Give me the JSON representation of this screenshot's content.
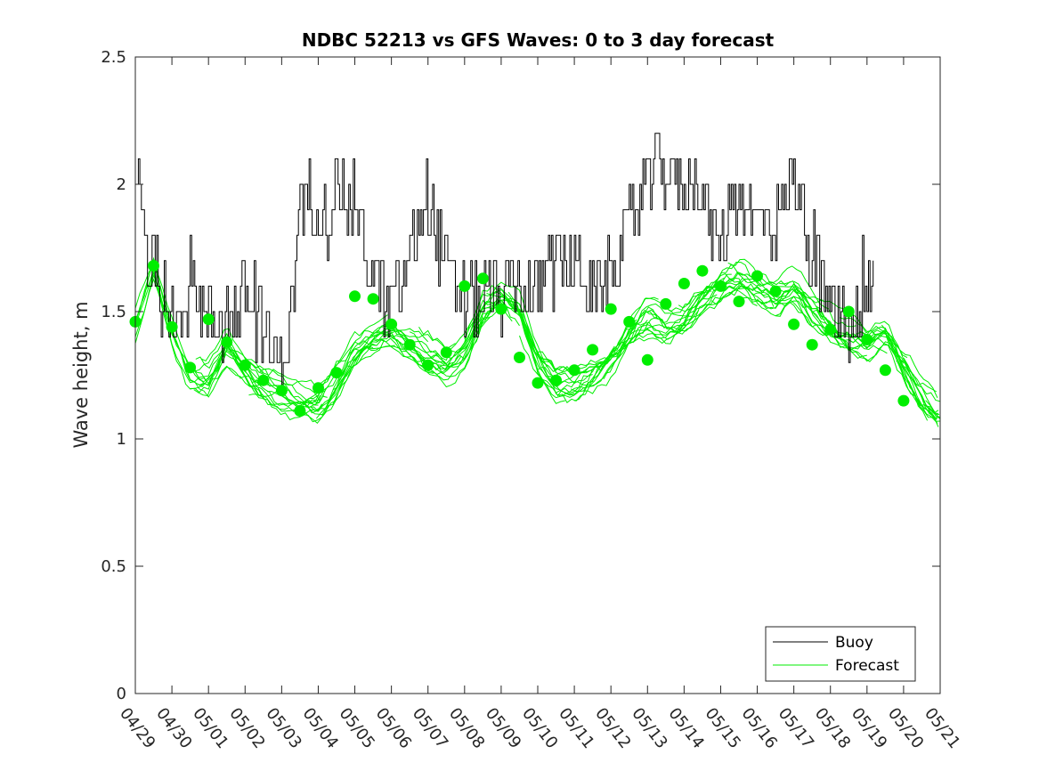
{
  "chart_data": {
    "type": "line",
    "title": "NDBC 52213 vs GFS Waves: 0 to 3 day forecast",
    "xlabel": "",
    "ylabel": "Wave height, m",
    "ylim": [
      0,
      2.5
    ],
    "yticks": [
      "0",
      "0.5",
      "1",
      "1.5",
      "2",
      "2.5"
    ],
    "x_range_days": [
      "04/29",
      "05/21"
    ],
    "xtick_labels": [
      "04/29",
      "04/30",
      "05/01",
      "05/02",
      "05/03",
      "05/04",
      "05/05",
      "05/06",
      "05/07",
      "05/08",
      "05/09",
      "05/10",
      "05/11",
      "05/12",
      "05/13",
      "05/14",
      "05/15",
      "05/16",
      "05/17",
      "05/18",
      "05/19",
      "05/20",
      "05/21"
    ],
    "grid": false,
    "legend_position": "bottom-right",
    "legend": [
      "Buoy",
      "Forecast"
    ],
    "colors": {
      "buoy": "#000000",
      "forecast": "#00ee00"
    },
    "buoy_anchor_days": [
      0,
      0.08,
      0.2,
      0.3,
      0.35,
      0.5,
      0.6,
      0.8,
      0.9,
      1.0,
      1.15,
      1.3,
      1.5,
      1.7,
      1.8,
      2.0,
      2.3,
      2.6,
      2.8,
      3.0,
      3.3,
      3.6,
      3.8,
      4.0,
      4.2,
      4.5,
      4.8,
      5.2,
      5.5,
      5.8,
      6.0,
      6.2,
      6.5,
      6.7,
      6.9,
      7.0,
      7.2,
      7.4,
      7.6,
      7.8,
      8.0,
      8.3,
      8.6,
      9.0,
      9.3,
      9.6,
      9.9,
      10.2,
      10.5,
      10.8,
      11.0,
      11.3,
      11.6,
      11.9,
      12.2,
      12.5,
      12.8,
      13.0,
      13.2,
      13.5,
      13.8,
      14.0,
      14.3,
      14.6,
      14.9,
      15.2,
      15.5,
      15.8,
      16.0,
      16.3,
      16.6,
      16.9,
      17.2,
      17.5,
      17.8,
      18.0,
      18.2,
      18.5,
      18.8,
      19.0,
      19.3,
      19.6,
      19.9,
      20.2
    ],
    "buoy_anchor_values": [
      1.9,
      2.05,
      1.95,
      1.7,
      1.65,
      1.75,
      1.65,
      1.5,
      1.55,
      1.6,
      1.45,
      1.45,
      1.6,
      1.6,
      1.5,
      1.45,
      1.45,
      1.5,
      1.5,
      1.6,
      1.45,
      1.4,
      1.3,
      1.3,
      1.4,
      1.9,
      1.95,
      1.85,
      2.0,
      1.9,
      1.95,
      1.75,
      1.65,
      1.6,
      1.45,
      1.55,
      1.55,
      1.7,
      1.75,
      1.9,
      1.95,
      1.75,
      1.65,
      1.55,
      1.55,
      1.55,
      1.55,
      1.6,
      1.6,
      1.55,
      1.6,
      1.65,
      1.7,
      1.7,
      1.7,
      1.55,
      1.6,
      1.65,
      1.7,
      1.85,
      1.95,
      2.0,
      2.1,
      2.05,
      1.95,
      2.05,
      1.95,
      1.8,
      1.75,
      1.95,
      1.95,
      1.85,
      1.85,
      1.85,
      1.95,
      2.05,
      1.95,
      1.7,
      1.6,
      1.5,
      1.45,
      1.45,
      1.5,
      1.6
    ],
    "forecast_anchor_days": [
      0,
      0.5,
      1,
      1.5,
      2,
      2.5,
      3,
      3.5,
      4,
      4.5,
      5,
      5.5,
      6,
      6.5,
      7,
      7.5,
      8,
      8.5,
      9,
      9.5,
      10,
      10.5,
      11,
      11.5,
      12,
      12.5,
      13,
      13.5,
      14,
      14.5,
      15,
      15.5,
      16,
      16.5,
      17,
      17.5,
      18,
      18.5,
      19,
      19.5,
      20,
      20.5,
      21,
      21.5,
      22
    ],
    "forecast_anchor_values": [
      1.46,
      1.68,
      1.43,
      1.27,
      1.25,
      1.36,
      1.27,
      1.22,
      1.18,
      1.15,
      1.14,
      1.23,
      1.33,
      1.38,
      1.42,
      1.38,
      1.33,
      1.28,
      1.33,
      1.5,
      1.55,
      1.49,
      1.3,
      1.2,
      1.2,
      1.25,
      1.32,
      1.42,
      1.49,
      1.45,
      1.47,
      1.57,
      1.62,
      1.64,
      1.6,
      1.56,
      1.6,
      1.52,
      1.47,
      1.42,
      1.38,
      1.42,
      1.3,
      1.18,
      1.1
    ],
    "forecast_run_count": 7,
    "forecast_run_length_days": 3.5,
    "forecast_markers": [
      {
        "x": 0.0,
        "y": 1.46
      },
      {
        "x": 0.5,
        "y": 1.68
      },
      {
        "x": 1.0,
        "y": 1.44
      },
      {
        "x": 1.5,
        "y": 1.28
      },
      {
        "x": 2.0,
        "y": 1.47
      },
      {
        "x": 2.5,
        "y": 1.38
      },
      {
        "x": 3.0,
        "y": 1.29
      },
      {
        "x": 3.5,
        "y": 1.23
      },
      {
        "x": 4.0,
        "y": 1.19
      },
      {
        "x": 4.5,
        "y": 1.11
      },
      {
        "x": 5.0,
        "y": 1.2
      },
      {
        "x": 5.5,
        "y": 1.26
      },
      {
        "x": 6.0,
        "y": 1.56
      },
      {
        "x": 6.5,
        "y": 1.55
      },
      {
        "x": 7.0,
        "y": 1.45
      },
      {
        "x": 7.5,
        "y": 1.37
      },
      {
        "x": 8.0,
        "y": 1.29
      },
      {
        "x": 8.5,
        "y": 1.34
      },
      {
        "x": 9.0,
        "y": 1.6
      },
      {
        "x": 9.5,
        "y": 1.63
      },
      {
        "x": 10.0,
        "y": 1.51
      },
      {
        "x": 10.5,
        "y": 1.32
      },
      {
        "x": 11.0,
        "y": 1.22
      },
      {
        "x": 11.5,
        "y": 1.23
      },
      {
        "x": 12.0,
        "y": 1.27
      },
      {
        "x": 12.5,
        "y": 1.35
      },
      {
        "x": 13.0,
        "y": 1.51
      },
      {
        "x": 13.5,
        "y": 1.46
      },
      {
        "x": 14.0,
        "y": 1.31
      },
      {
        "x": 14.5,
        "y": 1.53
      },
      {
        "x": 15.0,
        "y": 1.61
      },
      {
        "x": 15.5,
        "y": 1.66
      },
      {
        "x": 16.0,
        "y": 1.6
      },
      {
        "x": 16.5,
        "y": 1.54
      },
      {
        "x": 17.0,
        "y": 1.64
      },
      {
        "x": 17.5,
        "y": 1.58
      },
      {
        "x": 18.0,
        "y": 1.45
      },
      {
        "x": 18.5,
        "y": 1.37
      },
      {
        "x": 19.0,
        "y": 1.43
      },
      {
        "x": 19.5,
        "y": 1.5
      },
      {
        "x": 20.0,
        "y": 1.39
      },
      {
        "x": 20.5,
        "y": 1.27
      },
      {
        "x": 21.0,
        "y": 1.15
      }
    ]
  }
}
